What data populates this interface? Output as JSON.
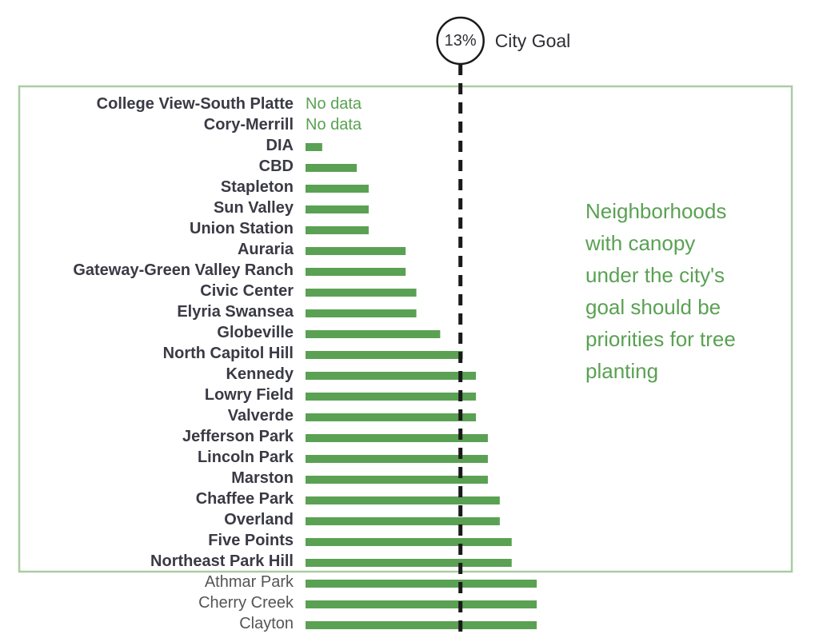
{
  "chart_data": {
    "type": "bar",
    "orientation": "horizontal",
    "goal": {
      "value": 13,
      "label_value": "13%",
      "label": "City Goal"
    },
    "annotation_lines": [
      "Neighborhoods",
      "with canopy",
      "under the city's",
      "goal should be",
      "priorities for tree",
      "planting"
    ],
    "no_data_label": "No data",
    "categories": [
      "College View-South Platte",
      "Cory-Merrill",
      "DIA",
      "CBD",
      "Stapleton",
      "Sun Valley",
      "Union Station",
      "Auraria",
      "Gateway-Green Valley Ranch",
      "Civic Center",
      "Elyria Swansea",
      "Globeville",
      "North Capitol Hill",
      "Kennedy",
      "Lowry Field",
      "Valverde",
      "Jefferson Park",
      "Lincoln Park",
      "Marston",
      "Chaffee Park",
      "Overland",
      "Five Points",
      "Northeast Park Hill",
      "Athmar Park",
      "Cherry Creek",
      "Clayton"
    ],
    "values": [
      null,
      null,
      1.4,
      4.3,
      5.3,
      5.3,
      5.3,
      8.4,
      8.4,
      9.3,
      9.3,
      11.3,
      13.2,
      14.3,
      14.3,
      14.3,
      15.3,
      15.3,
      15.3,
      16.3,
      16.3,
      17.3,
      17.3,
      19.4,
      19.4,
      19.4
    ],
    "highlighted_count": 23,
    "colors": {
      "bar": "#5aa153",
      "box": "#a9cda3",
      "goal_line": "#1a1a1a",
      "text": "#3a3a45"
    }
  }
}
